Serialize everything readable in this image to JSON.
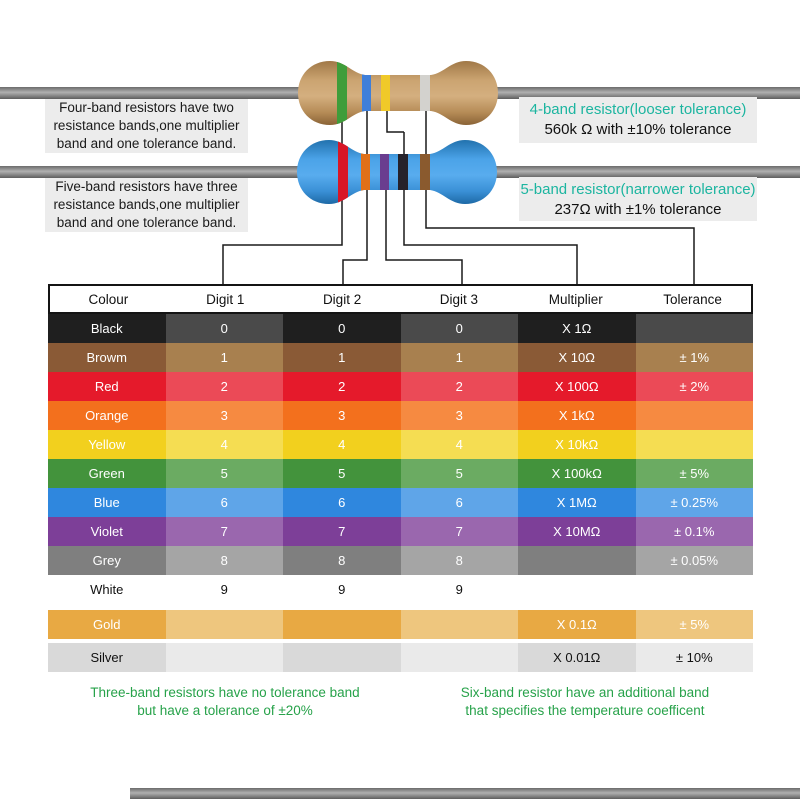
{
  "annotations": {
    "four_band_note": [
      "Four-band resistors have two",
      "resistance bands,one multiplier",
      "band and one tolerance band."
    ],
    "five_band_note": [
      "Five-band resistors have three",
      "resistance bands,one multiplier",
      "band and one tolerance band."
    ]
  },
  "callouts": {
    "four_band": {
      "title": "4-band resistor(looser tolerance)",
      "value": "560k Ω with ±10% tolerance"
    },
    "five_band": {
      "title": "5-band resistor(narrower tolerance)",
      "value": "237Ω with ±1% tolerance"
    }
  },
  "resistor4": {
    "name": "4-band resistor",
    "body_color": "#c9a06f",
    "bands": [
      {
        "name": "green",
        "color": "#3f9d3a"
      },
      {
        "name": "blue",
        "color": "#3f7fd9"
      },
      {
        "name": "yellow",
        "color": "#f0c929"
      },
      {
        "name": "silver",
        "color": "#d3d2ce"
      }
    ]
  },
  "resistor5": {
    "name": "5-band resistor",
    "body_color": "#3d9ae0",
    "bands": [
      {
        "name": "red",
        "color": "#d81626"
      },
      {
        "name": "orange",
        "color": "#e07018"
      },
      {
        "name": "violet",
        "color": "#6a3d8f"
      },
      {
        "name": "black",
        "color": "#26222a"
      },
      {
        "name": "brown",
        "color": "#8a5a2e"
      }
    ]
  },
  "table": {
    "headers": [
      "Colour",
      "Digit 1",
      "Digit 2",
      "Digit 3",
      "Multiplier",
      "Tolerance"
    ],
    "rows": [
      {
        "colour": "Black",
        "digit1": "0",
        "digit2": "0",
        "digit3": "0",
        "multiplier": "X 1Ω",
        "tolerance": "",
        "base": "#1f1f1f",
        "tint": "#4a4a4a",
        "text": "#ffffff",
        "gap": 0
      },
      {
        "colour": "Browm",
        "digit1": "1",
        "digit2": "1",
        "digit3": "1",
        "multiplier": "X 10Ω",
        "tolerance": "± 1%",
        "base": "#8a5a36",
        "tint": "#a8804f",
        "text": "#ffffff",
        "gap": 0
      },
      {
        "colour": "Red",
        "digit1": "2",
        "digit2": "2",
        "digit3": "2",
        "multiplier": "X 100Ω",
        "tolerance": "± 2%",
        "base": "#e51a2b",
        "tint": "#eb4a57",
        "text": "#ffffff",
        "gap": 0
      },
      {
        "colour": "Orange",
        "digit1": "3",
        "digit2": "3",
        "digit3": "3",
        "multiplier": "X 1kΩ",
        "tolerance": "",
        "base": "#f3701d",
        "tint": "#f68a41",
        "text": "#ffffff",
        "gap": 0
      },
      {
        "colour": "Yellow",
        "digit1": "4",
        "digit2": "4",
        "digit3": "4",
        "multiplier": "X 10kΩ",
        "tolerance": "",
        "base": "#f2d01e",
        "tint": "#f5dd52",
        "text": "#ffffff",
        "gap": 0
      },
      {
        "colour": "Green",
        "digit1": "5",
        "digit2": "5",
        "digit3": "5",
        "multiplier": "X 100kΩ",
        "tolerance": "± 5%",
        "base": "#43933c",
        "tint": "#6bab62",
        "text": "#ffffff",
        "gap": 0
      },
      {
        "colour": "Blue",
        "digit1": "6",
        "digit2": "6",
        "digit3": "6",
        "multiplier": "X 1MΩ",
        "tolerance": "± 0.25%",
        "base": "#2f87de",
        "tint": "#5fa5e8",
        "text": "#ffffff",
        "gap": 0
      },
      {
        "colour": "Violet",
        "digit1": "7",
        "digit2": "7",
        "digit3": "7",
        "multiplier": "X 10MΩ",
        "tolerance": "± 0.1%",
        "base": "#7d3f98",
        "tint": "#9a67ae",
        "text": "#ffffff",
        "gap": 0
      },
      {
        "colour": "Grey",
        "digit1": "8",
        "digit2": "8",
        "digit3": "8",
        "multiplier": "",
        "tolerance": "± 0.05%",
        "base": "#7f7f7f",
        "tint": "#a5a5a5",
        "text": "#ffffff",
        "gap": 0
      },
      {
        "colour": "White",
        "digit1": "9",
        "digit2": "9",
        "digit3": "9",
        "multiplier": "",
        "tolerance": "",
        "base": "#ffffff",
        "tint": "#ffffff",
        "text": "#111111",
        "gap": 0
      },
      {
        "colour": "Gold",
        "digit1": "",
        "digit2": "",
        "digit3": "",
        "multiplier": "X 0.1Ω",
        "tolerance": "± 5%",
        "base": "#e8a943",
        "tint": "#eec67e",
        "text": "#ffffff",
        "gap": 6
      },
      {
        "colour": "Silver",
        "digit1": "",
        "digit2": "",
        "digit3": "",
        "multiplier": "X 0.01Ω",
        "tolerance": "± 10%",
        "base": "#d9d9d9",
        "tint": "#eaeaea",
        "text": "#111111",
        "gap": 4
      }
    ]
  },
  "footnotes": {
    "three_band": [
      "Three-band resistors have no tolerance band",
      "but have a tolerance of ±20%"
    ],
    "six_band": [
      "Six-band resistor have an additional band",
      "that specifies the temperature coefficent"
    ]
  },
  "colors": {
    "callout_title": "#1cb5a0",
    "footnote_green": "#27a24a",
    "wire": "#9a9a9a",
    "note_background": "#ececec",
    "connector_line": "#1a1a1a"
  }
}
